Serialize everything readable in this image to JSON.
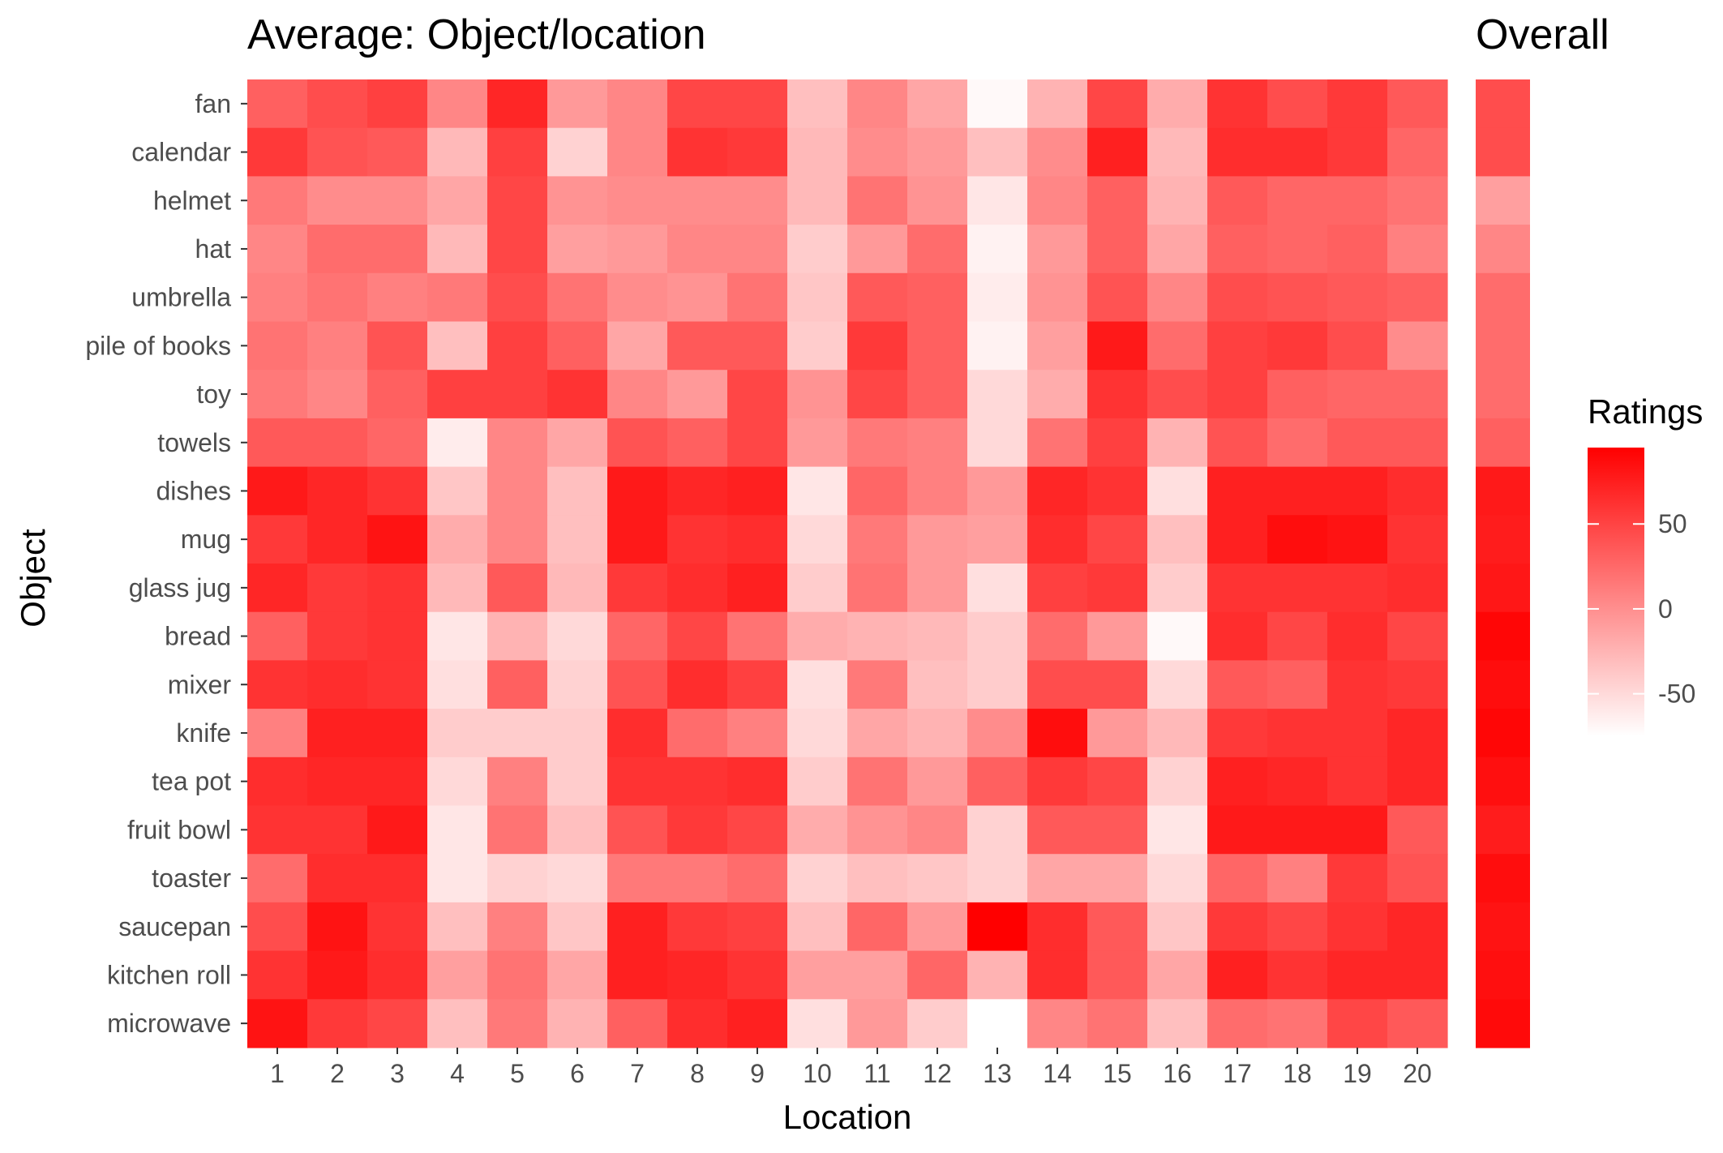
{
  "chart_data": [
    {
      "type": "heatmap",
      "title": "Average: Object/location",
      "xlabel": "Location",
      "ylabel": "Object",
      "x_categories": [
        "1",
        "2",
        "3",
        "4",
        "5",
        "6",
        "7",
        "8",
        "9",
        "10",
        "11",
        "12",
        "13",
        "14",
        "15",
        "16",
        "17",
        "18",
        "19",
        "20"
      ],
      "y_categories": [
        "fan",
        "calendar",
        "helmet",
        "hat",
        "umbrella",
        "pile of books",
        "toy",
        "towels",
        "dishes",
        "mug",
        "glass jug",
        "bread",
        "mixer",
        "knife",
        "tea pot",
        "fruit bowl",
        "toaster",
        "saucepan",
        "kitchen roll",
        "microwave"
      ],
      "values": [
        [
          25,
          40,
          50,
          -5,
          70,
          -20,
          -5,
          45,
          45,
          -50,
          -5,
          -30,
          -95,
          -40,
          45,
          -35,
          60,
          40,
          55,
          30
        ],
        [
          55,
          35,
          30,
          -45,
          50,
          -65,
          -5,
          60,
          55,
          -45,
          -10,
          -20,
          -50,
          -10,
          75,
          -45,
          65,
          65,
          55,
          20
        ],
        [
          5,
          -10,
          -10,
          -30,
          45,
          -15,
          -10,
          -10,
          -10,
          -45,
          10,
          -15,
          -80,
          -5,
          25,
          -40,
          30,
          20,
          20,
          10
        ],
        [
          -5,
          15,
          15,
          -45,
          45,
          -25,
          -20,
          -5,
          -5,
          -60,
          -20,
          15,
          -90,
          -20,
          25,
          -30,
          25,
          20,
          25,
          0
        ],
        [
          0,
          10,
          0,
          5,
          40,
          10,
          -10,
          -15,
          10,
          -55,
          30,
          25,
          -85,
          -15,
          35,
          -5,
          40,
          35,
          30,
          25
        ],
        [
          10,
          0,
          35,
          -50,
          50,
          25,
          -30,
          30,
          30,
          -60,
          55,
          25,
          -90,
          -25,
          80,
          15,
          50,
          55,
          40,
          -10
        ],
        [
          5,
          -5,
          25,
          50,
          50,
          60,
          -5,
          -20,
          45,
          -15,
          45,
          25,
          -70,
          -35,
          60,
          40,
          50,
          25,
          20,
          20
        ],
        [
          30,
          30,
          20,
          -85,
          -5,
          -30,
          35,
          25,
          45,
          -20,
          5,
          0,
          -70,
          10,
          50,
          -40,
          35,
          15,
          30,
          30
        ],
        [
          80,
          70,
          60,
          -55,
          -5,
          -50,
          80,
          70,
          75,
          -80,
          20,
          0,
          -20,
          70,
          60,
          -75,
          75,
          75,
          75,
          65
        ],
        [
          55,
          70,
          85,
          -35,
          -5,
          -50,
          80,
          60,
          65,
          -70,
          5,
          -20,
          -25,
          65,
          45,
          -50,
          75,
          90,
          85,
          60
        ],
        [
          70,
          55,
          60,
          -45,
          30,
          -45,
          55,
          65,
          75,
          -60,
          10,
          -20,
          -75,
          50,
          55,
          -60,
          60,
          60,
          60,
          65
        ],
        [
          25,
          55,
          60,
          -80,
          -40,
          -70,
          20,
          45,
          10,
          -35,
          -40,
          -45,
          -60,
          15,
          -20,
          -95,
          65,
          45,
          65,
          45
        ],
        [
          60,
          65,
          60,
          -75,
          25,
          -65,
          35,
          65,
          50,
          -75,
          5,
          -50,
          -60,
          40,
          40,
          -70,
          30,
          25,
          60,
          55
        ],
        [
          0,
          75,
          75,
          -60,
          -60,
          -60,
          65,
          15,
          0,
          -70,
          -30,
          -40,
          -10,
          90,
          -20,
          -45,
          55,
          60,
          60,
          70
        ],
        [
          65,
          70,
          70,
          -70,
          0,
          -60,
          60,
          60,
          65,
          -60,
          10,
          -20,
          25,
          55,
          45,
          -65,
          75,
          70,
          60,
          70
        ],
        [
          60,
          60,
          80,
          -80,
          10,
          -50,
          35,
          55,
          45,
          -35,
          -15,
          -5,
          -65,
          30,
          30,
          -80,
          80,
          80,
          80,
          30
        ],
        [
          15,
          65,
          65,
          -80,
          -65,
          -70,
          5,
          5,
          15,
          -65,
          -50,
          -55,
          -65,
          -30,
          -30,
          -70,
          20,
          0,
          55,
          35
        ],
        [
          40,
          85,
          60,
          -50,
          0,
          -55,
          75,
          55,
          50,
          -50,
          20,
          -20,
          100,
          65,
          30,
          -55,
          55,
          45,
          60,
          70
        ],
        [
          60,
          80,
          65,
          -25,
          10,
          -30,
          75,
          70,
          60,
          -25,
          -25,
          20,
          -40,
          65,
          30,
          -30,
          75,
          60,
          70,
          70
        ],
        [
          85,
          55,
          45,
          -50,
          5,
          -40,
          25,
          65,
          75,
          -75,
          -20,
          -60,
          -100,
          -5,
          10,
          -50,
          15,
          10,
          45,
          30
        ]
      ],
      "legend_title": "Ratings",
      "legend_ticks": [
        50,
        0,
        -50
      ],
      "legend_ticks_label": [
        "50",
        "0",
        "-50"
      ],
      "color_range": [
        -100,
        100
      ],
      "color_low": "#ffffff",
      "color_high": "#ff0000"
    },
    {
      "type": "heatmap",
      "title": "Overall",
      "y_categories": [
        "fan",
        "calendar",
        "helmet",
        "hat",
        "umbrella",
        "pile of books",
        "toy",
        "towels",
        "dishes",
        "mug",
        "glass jug",
        "bread",
        "mixer",
        "knife",
        "tea pot",
        "fruit bowl",
        "toaster",
        "saucepan",
        "kitchen roll",
        "microwave"
      ],
      "values": [
        40,
        40,
        -25,
        -5,
        15,
        15,
        15,
        25,
        80,
        78,
        82,
        95,
        90,
        95,
        88,
        78,
        90,
        85,
        88,
        92
      ]
    }
  ]
}
